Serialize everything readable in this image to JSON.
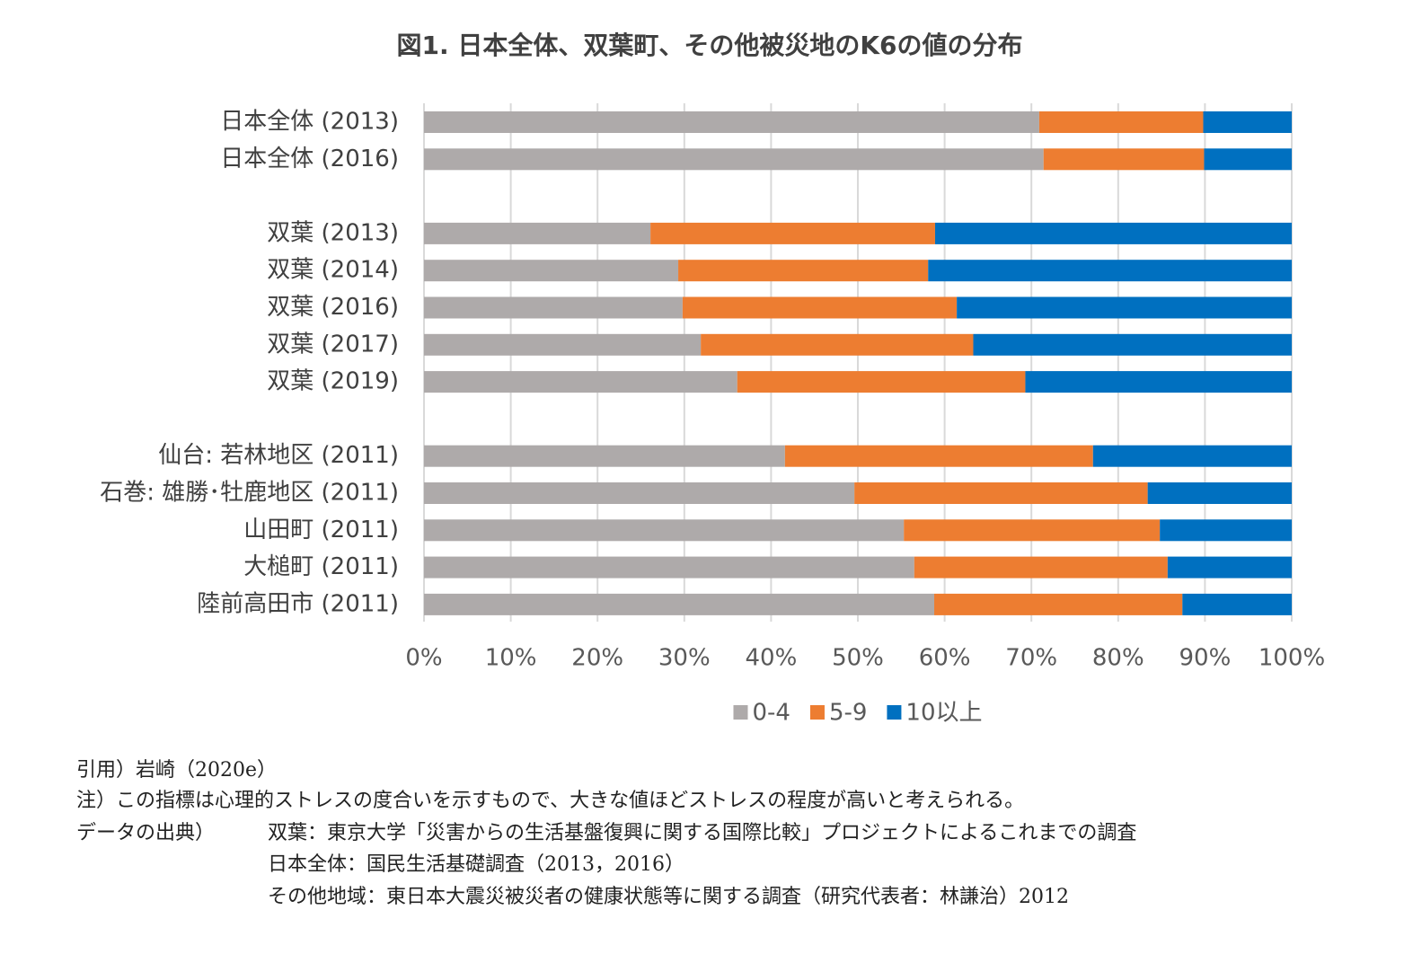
{
  "chart_data": {
    "type": "stacked-bar-horizontal",
    "title": "図1. 日本全体、双葉町、その他被災地のK6の値の分布",
    "categories": [
      "日本全体 (2013)",
      "日本全体 (2016)",
      null,
      "双葉 (2013)",
      "双葉 (2014)",
      "双葉 (2016)",
      "双葉 (2017)",
      "双葉 (2019)",
      null,
      "仙台: 若林地区 (2011)",
      "石巻: 雄勝･牡鹿地区 (2011)",
      "山田町 (2011)",
      "大槌町 (2011)",
      "陸前高田市 (2011)"
    ],
    "series": [
      {
        "name": "0-4",
        "color": "#aeaaaa",
        "values": [
          70.9,
          71.4,
          null,
          26.1,
          29.3,
          29.8,
          31.9,
          36.1,
          null,
          41.6,
          49.6,
          55.3,
          56.5,
          58.8
        ]
      },
      {
        "name": "5-9",
        "color": "#ed7d31",
        "values": [
          18.9,
          18.5,
          null,
          32.8,
          28.8,
          31.6,
          31.4,
          33.2,
          null,
          35.5,
          33.8,
          29.5,
          29.2,
          28.6
        ]
      },
      {
        "name": "10以上",
        "color": "#0070c0",
        "values": [
          10.2,
          10.1,
          null,
          41.1,
          41.9,
          38.6,
          36.7,
          30.7,
          null,
          22.9,
          16.6,
          15.2,
          14.3,
          12.6
        ]
      }
    ],
    "xlim": [
      0,
      100
    ],
    "xticks": [
      {
        "value": 0,
        "label": "0%"
      },
      {
        "value": 10,
        "label": "10%"
      },
      {
        "value": 20,
        "label": "20%"
      },
      {
        "value": 30,
        "label": "30%"
      },
      {
        "value": 40,
        "label": "40%"
      },
      {
        "value": 50,
        "label": "50%"
      },
      {
        "value": 60,
        "label": "60%"
      },
      {
        "value": 70,
        "label": "70%"
      },
      {
        "value": 80,
        "label": "80%"
      },
      {
        "value": 90,
        "label": "90%"
      },
      {
        "value": 100,
        "label": "100%"
      }
    ],
    "grid": true,
    "legend": "bottom"
  },
  "notes": {
    "citation": "引用）岩崎（2020e）",
    "note": "注）この指標は心理的ストレスの度合いを示すもので、大きな値ほどストレスの程度が高いと考えられる。",
    "source_label": "データの出典）",
    "sources": [
      "双葉：東京大学「災害からの生活基盤復興に関する国際比較」プロジェクトによるこれまでの調査",
      "日本全体：国民生活基礎調査（2013，2016）",
      "その他地域：東日本大震災被災者の健康状態等に関する調査（研究代表者：林謙治）2012"
    ]
  }
}
